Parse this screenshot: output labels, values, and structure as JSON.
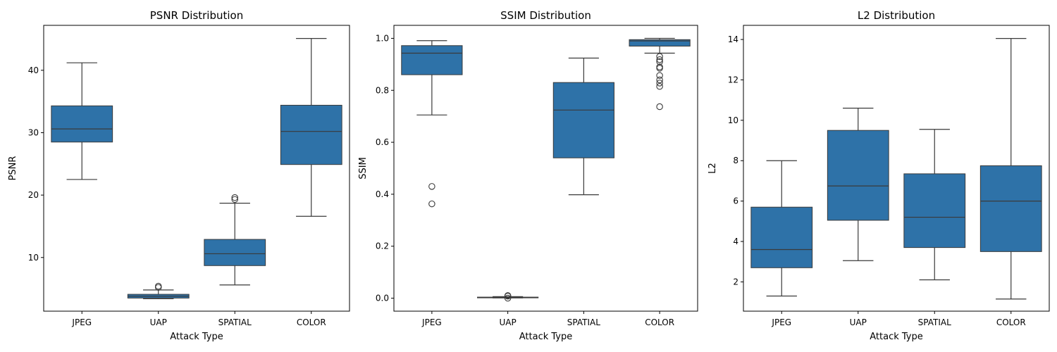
{
  "chart_data": [
    {
      "type": "box",
      "title": "PSNR Distribution",
      "xlabel": "Attack Type",
      "ylabel": "PSNR",
      "categories": [
        "JPEG",
        "UAP",
        "SPATIAL",
        "COLOR"
      ],
      "ylim": [
        1.4,
        47.2
      ],
      "yticks": [
        10,
        20,
        30,
        40
      ],
      "ytick_labels": [
        "10",
        "20",
        "30",
        "40"
      ],
      "boxes": [
        {
          "whislo": 22.5,
          "q1": 28.5,
          "med": 30.6,
          "q3": 34.3,
          "whishi": 41.2,
          "fliers": []
        },
        {
          "whislo": 3.4,
          "q1": 3.5,
          "med": 3.8,
          "q3": 4.1,
          "whishi": 4.8,
          "fliers": [
            5.2,
            5.4
          ]
        },
        {
          "whislo": 5.6,
          "q1": 8.7,
          "med": 10.6,
          "q3": 12.9,
          "whishi": 18.7,
          "fliers": [
            19.3,
            19.6
          ]
        },
        {
          "whislo": 16.6,
          "q1": 24.9,
          "med": 30.2,
          "q3": 34.4,
          "whishi": 45.1,
          "fliers": []
        }
      ]
    },
    {
      "type": "box",
      "title": "SSIM Distribution",
      "xlabel": "Attack Type",
      "ylabel": "SSIM",
      "categories": [
        "JPEG",
        "UAP",
        "SPATIAL",
        "COLOR"
      ],
      "ylim": [
        -0.05,
        1.05
      ],
      "yticks": [
        0.0,
        0.2,
        0.4,
        0.6,
        0.8,
        1.0
      ],
      "ytick_labels": [
        "0.0",
        "0.2",
        "0.4",
        "0.6",
        "0.8",
        "1.0"
      ],
      "boxes": [
        {
          "whislo": 0.705,
          "q1": 0.86,
          "med": 0.943,
          "q3": 0.972,
          "whishi": 0.991,
          "fliers": [
            0.43,
            0.363
          ]
        },
        {
          "whislo": 0.001,
          "q1": 0.002,
          "med": 0.003,
          "q3": 0.004,
          "whishi": 0.006,
          "fliers": [
            0.008,
            0.01,
            0.0
          ]
        },
        {
          "whislo": 0.398,
          "q1": 0.54,
          "med": 0.724,
          "q3": 0.83,
          "whishi": 0.924,
          "fliers": []
        },
        {
          "whislo": 0.943,
          "q1": 0.97,
          "med": 0.99,
          "q3": 0.995,
          "whishi": 1.0,
          "fliers": [
            0.93,
            0.918,
            0.91,
            0.89,
            0.885,
            0.857,
            0.84,
            0.828,
            0.815,
            0.737
          ]
        }
      ]
    },
    {
      "type": "box",
      "title": "L2 Distribution",
      "xlabel": "Attack Type",
      "ylabel": "L2",
      "categories": [
        "JPEG",
        "UAP",
        "SPATIAL",
        "COLOR"
      ],
      "ylim": [
        0.55,
        14.7
      ],
      "yticks": [
        2,
        4,
        6,
        8,
        10,
        12,
        14
      ],
      "ytick_labels": [
        "2",
        "4",
        "6",
        "8",
        "10",
        "12",
        "14"
      ],
      "boxes": [
        {
          "whislo": 1.3,
          "q1": 2.7,
          "med": 3.6,
          "q3": 5.7,
          "whishi": 8.0,
          "fliers": []
        },
        {
          "whislo": 3.05,
          "q1": 5.05,
          "med": 6.75,
          "q3": 9.5,
          "whishi": 10.6,
          "fliers": []
        },
        {
          "whislo": 2.1,
          "q1": 3.7,
          "med": 5.2,
          "q3": 7.35,
          "whishi": 9.55,
          "fliers": []
        },
        {
          "whislo": 1.15,
          "q1": 3.5,
          "med": 6.0,
          "q3": 7.75,
          "whishi": 14.05,
          "fliers": []
        }
      ]
    }
  ]
}
